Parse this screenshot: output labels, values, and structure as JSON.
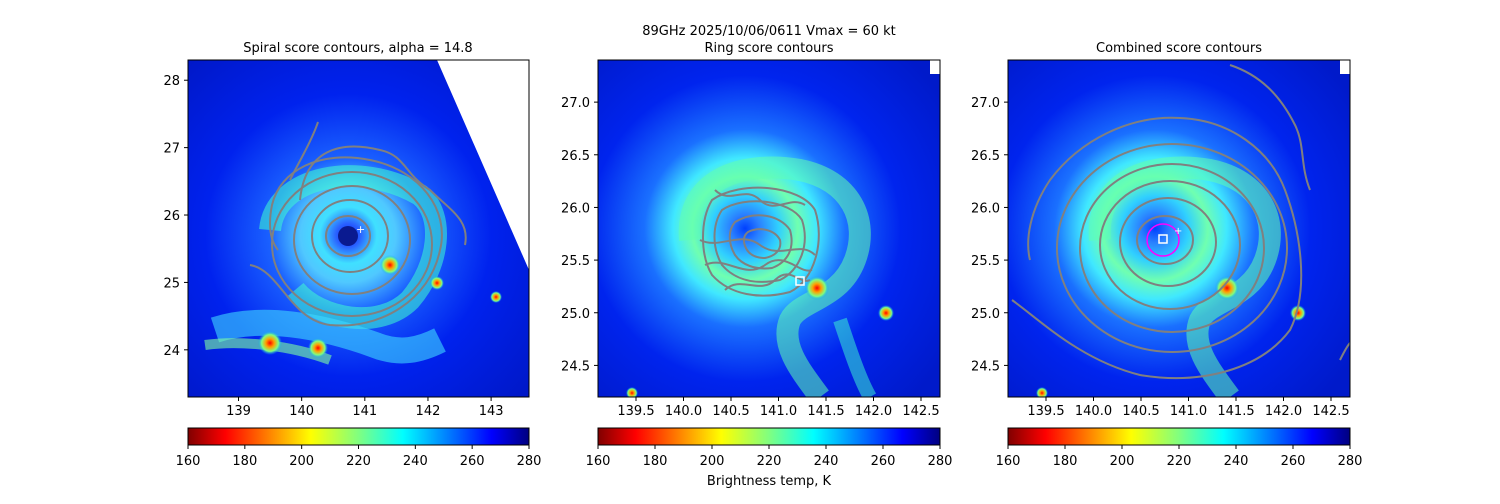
{
  "figure": {
    "suptitle": "89GHz  2025/10/06/0611    Vmax = 60 kt"
  },
  "colorbar_common": {
    "label": "Brightness temp, K",
    "range": [
      160,
      280
    ],
    "ticks": [
      "160",
      "180",
      "200",
      "220",
      "240",
      "260",
      "280"
    ],
    "colormap": "jet_r",
    "stops": [
      "#800000",
      "#ff0000",
      "#ff8000",
      "#ffff00",
      "#80ff80",
      "#00ffff",
      "#0080ff",
      "#0000ff",
      "#000080"
    ]
  },
  "contour_color": "#808080",
  "marker_color": "#ffffff",
  "circle_color": "#ff00ff",
  "chart_data": [
    {
      "type": "heatmap",
      "title": "Spiral score contours, alpha = 14.8",
      "xlim": [
        138.2,
        143.6
      ],
      "ylim": [
        23.3,
        28.3
      ],
      "xticks": [
        "139",
        "140",
        "141",
        "142",
        "143"
      ],
      "yticks": [
        "24",
        "25",
        "26",
        "27",
        "28"
      ],
      "colorbar_ticks": [
        "160",
        "180",
        "200",
        "220",
        "240",
        "260",
        "280"
      ],
      "center": [
        140.7,
        25.7
      ],
      "contours": "concentric spiral-score contours around center",
      "missing_region": "white swath edge at top-right"
    },
    {
      "type": "heatmap",
      "title": "Ring score contours",
      "xlim": [
        139.1,
        142.7
      ],
      "ylim": [
        24.2,
        27.4
      ],
      "xticks": [
        "139.5",
        "140.0",
        "140.5",
        "141.0",
        "141.5",
        "142.0",
        "142.5"
      ],
      "yticks": [
        "24.5",
        "25.0",
        "25.5",
        "26.0",
        "26.5",
        "27.0"
      ],
      "colorbar_ticks": [
        "160",
        "180",
        "200",
        "220",
        "240",
        "260",
        "280"
      ],
      "marker": [
        141.2,
        25.3
      ],
      "contours": "dense ring-score contour cluster near eye"
    },
    {
      "type": "heatmap",
      "title": "Combined score contours",
      "xlim": [
        139.1,
        142.7
      ],
      "ylim": [
        24.2,
        27.4
      ],
      "xticks": [
        "139.5",
        "140.0",
        "140.5",
        "141.0",
        "141.5",
        "142.0",
        "142.5"
      ],
      "yticks": [
        "24.5",
        "25.0",
        "25.5",
        "26.0",
        "26.5",
        "27.0"
      ],
      "colorbar_ticks": [
        "160",
        "180",
        "200",
        "220",
        "240",
        "260",
        "280"
      ],
      "marker": [
        140.73,
        25.71
      ],
      "circle_center": [
        140.73,
        25.7
      ],
      "circle_radius_deg": 0.16
    }
  ]
}
